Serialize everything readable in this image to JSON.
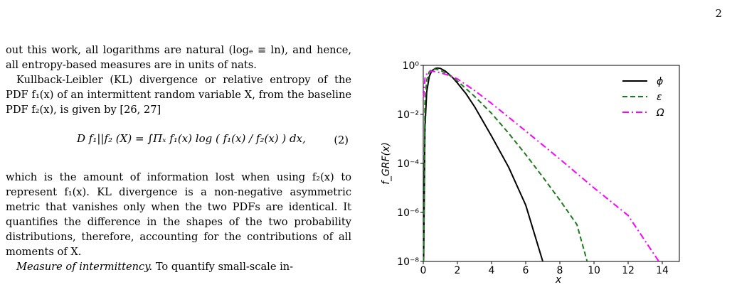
{
  "page": {
    "number": "2"
  },
  "text": {
    "p1": "out this work, all logarithms are natural (logₑ ≡ ln), and hence, all entropy-based measures are in units of nats.",
    "p2": "Kullback-Leibler (KL) divergence or relative entropy of the PDF f₁(x) of an intermittent random variable X, from the baseline PDF f₂(x), is given by [26, 27]",
    "equation": "D f₁||f₂ (X) = ∫Πₓ f₁(x) log ( f₁(x) / f₂(x) ) dx,",
    "equation_number": "(2)",
    "p3": "which is the amount of information lost when using f₂(x) to represent f₁(x). KL divergence is a non-negative asymmetric metric that vanishes only when the two PDFs are identical. It quantifies the difference in the shapes of the two probability distributions, therefore, accounting for the contributions of all moments of X.",
    "p4_heading": "Measure of intermittency.",
    "p4_start": "To quantify small-scale in-"
  },
  "chart_data": {
    "type": "line",
    "ylabel": "f_GRF(x)",
    "xlabel": "x",
    "xlim": [
      0,
      15
    ],
    "ylim": [
      1e-08,
      1
    ],
    "yscale": "log",
    "xticks": [
      "0",
      "2",
      "4",
      "6",
      "8",
      "10",
      "12",
      "14"
    ],
    "yticks": [
      "10⁻⁸",
      "10⁻⁶",
      "10⁻⁴",
      "10⁻²",
      "10⁰"
    ],
    "legend_position": "top-right",
    "series": [
      {
        "name": "ϕ",
        "color": "#000000",
        "style": "solid",
        "x": [
          0.02,
          0.1,
          0.2,
          0.35,
          0.5,
          0.7,
          0.85,
          1.0,
          1.3,
          1.7,
          2.0,
          2.5,
          3.0,
          4.0,
          5.0,
          6.0,
          7.0
        ],
        "y": [
          1e-08,
          0.003,
          0.08,
          0.35,
          0.6,
          0.75,
          0.78,
          0.75,
          0.58,
          0.33,
          0.19,
          0.07,
          0.021,
          0.0013,
          7e-05,
          2e-06,
          1e-08
        ]
      },
      {
        "name": "ε",
        "color": "#1e7a1e",
        "style": "dashed",
        "x": [
          0.02,
          0.1,
          0.2,
          0.35,
          0.5,
          0.7,
          1.0,
          1.5,
          2.0,
          3.0,
          4.0,
          5.0,
          6.0,
          7.0,
          8.0,
          9.0,
          9.6
        ],
        "y": [
          1e-08,
          0.03,
          0.25,
          0.55,
          0.68,
          0.7,
          0.63,
          0.41,
          0.23,
          0.055,
          0.011,
          0.0017,
          0.00023,
          2.8e-05,
          3.2e-06,
          3.2e-07,
          1e-08
        ]
      },
      {
        "name": "Ω",
        "color": "#ff00ff",
        "style": "dashdot",
        "x": [
          0.02,
          0.1,
          0.25,
          0.45,
          0.7,
          1.0,
          1.5,
          2.0,
          3.0,
          4.0,
          6.0,
          8.0,
          10.0,
          12.0,
          13.8
        ],
        "y": [
          0.05,
          0.3,
          0.52,
          0.58,
          0.56,
          0.5,
          0.39,
          0.28,
          0.095,
          0.028,
          0.0021,
          0.00015,
          1e-05,
          7.5e-07,
          1e-08
        ]
      }
    ]
  }
}
